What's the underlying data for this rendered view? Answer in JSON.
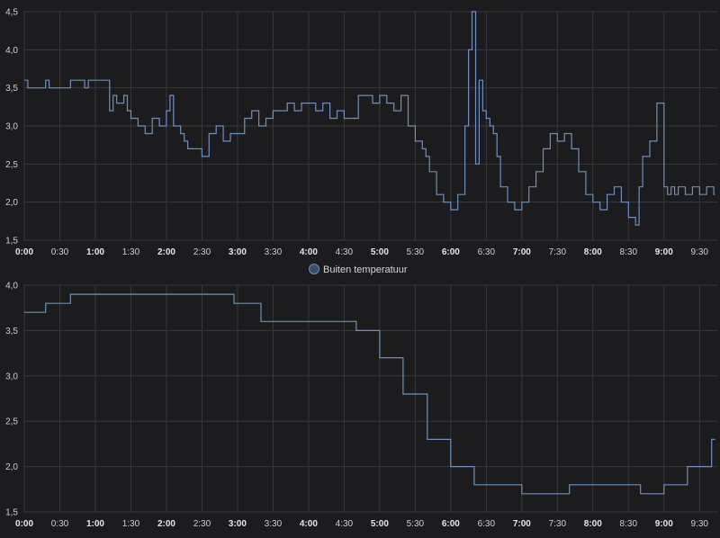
{
  "theme": {
    "background": "#1c1c1e",
    "grid": "#3a3a3d",
    "series_color": "#6e8fbf",
    "text": "#cfcfcf"
  },
  "chart_data": [
    {
      "type": "line",
      "step": true,
      "x_unit": "hours",
      "ylim": [
        1.5,
        4.5
      ],
      "yticks": [
        "1,5",
        "2,0",
        "2,5",
        "3,0",
        "3,5",
        "4,0",
        "4,5"
      ],
      "xticks": [
        "0:00",
        "0:30",
        "1:00",
        "1:30",
        "2:00",
        "2:30",
        "3:00",
        "3:30",
        "4:00",
        "4:30",
        "5:00",
        "5:30",
        "6:00",
        "6:30",
        "7:00",
        "7:30",
        "8:00",
        "8:30",
        "9:00",
        "9:30"
      ],
      "xticks_bold": [
        "0:00",
        "1:00",
        "2:00",
        "3:00",
        "4:00",
        "5:00",
        "6:00",
        "7:00",
        "8:00",
        "9:00"
      ],
      "legend": "",
      "series": [
        {
          "x": [
            0.0,
            0.05,
            0.1,
            0.3,
            0.35,
            0.6,
            0.65,
            0.85,
            0.9,
            1.1,
            1.2,
            1.25,
            1.3,
            1.4,
            1.45,
            1.5,
            1.6,
            1.7,
            1.8,
            1.9,
            2.0,
            2.05,
            2.1,
            2.2,
            2.25,
            2.3,
            2.4,
            2.5,
            2.6,
            2.7,
            2.8,
            2.9,
            3.0,
            3.1,
            3.2,
            3.3,
            3.4,
            3.5,
            3.6,
            3.7,
            3.8,
            3.9,
            4.0,
            4.1,
            4.2,
            4.3,
            4.4,
            4.5,
            4.6,
            4.7,
            4.8,
            4.9,
            5.0,
            5.1,
            5.2,
            5.3,
            5.4,
            5.5,
            5.6,
            5.65,
            5.7,
            5.8,
            5.9,
            6.0,
            6.1,
            6.2,
            6.25,
            6.3,
            6.35,
            6.4,
            6.45,
            6.5,
            6.55,
            6.6,
            6.65,
            6.7,
            6.8,
            6.9,
            7.0,
            7.1,
            7.2,
            7.3,
            7.4,
            7.5,
            7.6,
            7.7,
            7.8,
            7.9,
            8.0,
            8.1,
            8.2,
            8.3,
            8.4,
            8.5,
            8.6,
            8.65,
            8.7,
            8.8,
            8.9,
            9.0,
            9.05,
            9.1,
            9.15,
            9.2,
            9.3,
            9.4,
            9.5,
            9.6,
            9.7,
            9.72
          ],
          "y": [
            3.6,
            3.5,
            3.5,
            3.6,
            3.5,
            3.5,
            3.6,
            3.5,
            3.6,
            3.6,
            3.2,
            3.4,
            3.3,
            3.4,
            3.2,
            3.1,
            3.0,
            2.9,
            3.1,
            3.0,
            3.2,
            3.4,
            3.0,
            2.9,
            2.8,
            2.7,
            2.7,
            2.6,
            2.9,
            3.0,
            2.8,
            2.9,
            2.9,
            3.1,
            3.2,
            3.0,
            3.1,
            3.2,
            3.2,
            3.3,
            3.2,
            3.3,
            3.3,
            3.2,
            3.3,
            3.1,
            3.2,
            3.1,
            3.1,
            3.4,
            3.4,
            3.3,
            3.4,
            3.3,
            3.2,
            3.4,
            3.0,
            2.8,
            2.7,
            2.6,
            2.4,
            2.1,
            2.0,
            1.9,
            2.1,
            3.0,
            4.0,
            4.5,
            2.5,
            3.6,
            3.2,
            3.1,
            3.0,
            2.9,
            2.6,
            2.2,
            2.0,
            1.9,
            2.0,
            2.2,
            2.4,
            2.7,
            2.9,
            2.8,
            2.9,
            2.7,
            2.4,
            2.1,
            2.0,
            1.9,
            2.1,
            2.2,
            2.0,
            1.8,
            1.7,
            2.2,
            2.6,
            2.8,
            3.3,
            2.2,
            2.1,
            2.2,
            2.1,
            2.2,
            2.1,
            2.2,
            2.1,
            2.2,
            2.1,
            2.1
          ]
        }
      ]
    },
    {
      "type": "line",
      "step": true,
      "x_unit": "hours",
      "ylim": [
        1.5,
        4.0
      ],
      "yticks": [
        "1,5",
        "2,0",
        "2,5",
        "3,0",
        "3,5",
        "4,0"
      ],
      "xticks": [
        "0:00",
        "0:30",
        "1:00",
        "1:30",
        "2:00",
        "2:30",
        "3:00",
        "3:30",
        "4:00",
        "4:30",
        "5:00",
        "5:30",
        "6:00",
        "6:30",
        "7:00",
        "7:30",
        "8:00",
        "8:30",
        "9:00",
        "9:30"
      ],
      "xticks_bold": [
        "0:00",
        "1:00",
        "2:00",
        "3:00",
        "4:00",
        "5:00",
        "6:00",
        "7:00",
        "8:00",
        "9:00"
      ],
      "legend": "Buiten temperatuur",
      "series": [
        {
          "name": "Buiten temperatuur",
          "x": [
            0.0,
            0.3,
            0.65,
            2.95,
            3.33,
            4.67,
            5.0,
            5.33,
            5.67,
            6.0,
            6.33,
            7.0,
            7.67,
            8.67,
            9.0,
            9.33,
            9.67,
            9.72
          ],
          "y": [
            3.7,
            3.8,
            3.9,
            3.8,
            3.6,
            3.5,
            3.2,
            2.8,
            2.3,
            2.0,
            1.8,
            1.7,
            1.8,
            1.7,
            1.8,
            2.0,
            2.3,
            2.3
          ]
        }
      ]
    }
  ]
}
